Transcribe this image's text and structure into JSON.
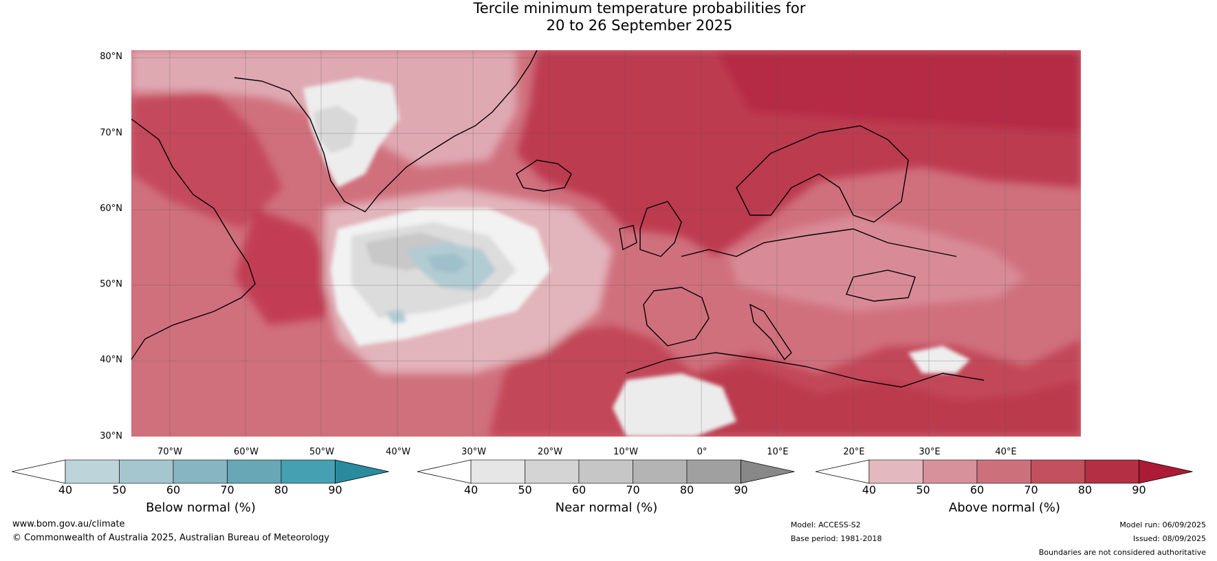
{
  "title": {
    "line1": "Tercile minimum temperature probabilities for",
    "line2": "20 to 26 September 2025"
  },
  "map": {
    "lat_labels": [
      "80°N",
      "70°N",
      "60°N",
      "50°N",
      "40°N",
      "30°N"
    ],
    "lon_labels": [
      "70°W",
      "60°W",
      "50°W",
      "40°W",
      "30°W",
      "20°W",
      "10°W",
      "0°",
      "10°E",
      "20°E",
      "30°E",
      "40°E"
    ],
    "dominant_colour": "#c0364d"
  },
  "colorbars": [
    {
      "title": "Below normal (%)",
      "ticks": [
        "40",
        "50",
        "60",
        "70",
        "80",
        "90"
      ],
      "colors": [
        "#ffffff",
        "#bed4db",
        "#a5c6ce",
        "#87b5c1",
        "#67a7b6",
        "#45a0b2",
        "#2a8aa0"
      ]
    },
    {
      "title": "Near normal (%)",
      "ticks": [
        "40",
        "50",
        "60",
        "70",
        "80",
        "90"
      ],
      "colors": [
        "#ffffff",
        "#e6e6e6",
        "#d4d4d4",
        "#c6c6c6",
        "#b4b4b4",
        "#a0a0a0",
        "#888888"
      ]
    },
    {
      "title": "Above normal (%)",
      "ticks": [
        "40",
        "50",
        "60",
        "70",
        "80",
        "90"
      ],
      "colors": [
        "#ffffff",
        "#e3b8bf",
        "#d6919b",
        "#cc717c",
        "#c2505e",
        "#b52f44",
        "#ad1a36"
      ]
    }
  ],
  "footer": {
    "website": "www.bom.gov.au/climate",
    "copyright": "© Commonwealth of Australia 2025, Australian Bureau of Meteorology",
    "model": "Model: ACCESS-S2",
    "base_period": "Base period: 1981-2018",
    "model_run": "Model run: 06/09/2025",
    "issued": "Issued: 08/09/2025",
    "boundaries_note": "Boundaries are not considered authoritative"
  }
}
